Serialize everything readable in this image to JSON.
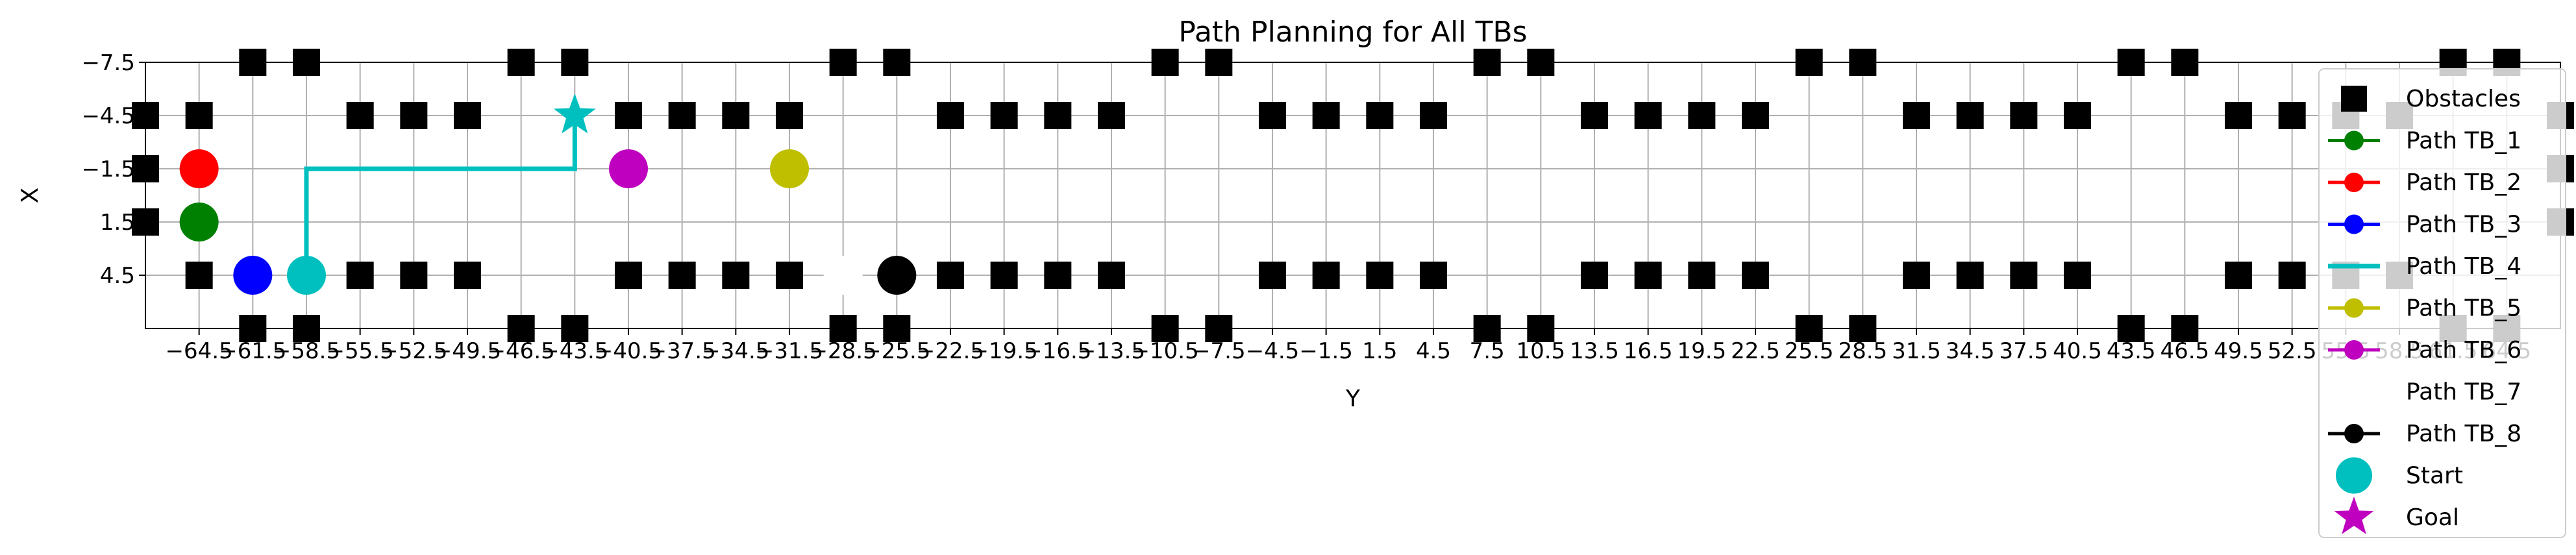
{
  "chart_data": {
    "type": "scatter",
    "title": "Path Planning for All TBs",
    "xlabel": "Y",
    "ylabel": "X",
    "xlim": [
      -67.5,
      67.5
    ],
    "ylim": [
      7.5,
      -7.5
    ],
    "y_inverted": true,
    "grid": true,
    "legend_placement": "right",
    "x_ticks": [
      -64.5,
      -61.5,
      -58.5,
      -55.5,
      -52.5,
      -49.5,
      -46.5,
      -43.5,
      -40.5,
      -37.5,
      -34.5,
      -31.5,
      -28.5,
      -25.5,
      -22.5,
      -19.5,
      -16.5,
      -13.5,
      -10.5,
      -7.5,
      -4.5,
      -1.5,
      1.5,
      4.5,
      7.5,
      10.5,
      13.5,
      16.5,
      19.5,
      22.5,
      25.5,
      28.5,
      31.5,
      34.5,
      37.5,
      40.5,
      43.5,
      46.5,
      49.5,
      52.5,
      55.5,
      58.5,
      61.5,
      64.5
    ],
    "x_tick_labels": [
      "−64.5",
      "−61.5",
      "−58.5",
      "−55.5",
      "−52.5",
      "−49.5",
      "−46.5",
      "−43.5",
      "−40.5",
      "−37.5",
      "−34.5",
      "−31.5",
      "−28.5",
      "−25.5",
      "−22.5",
      "−19.5",
      "−16.5",
      "−13.5",
      "−10.5",
      "−7.5",
      "−4.5",
      "−1.5",
      "1.5",
      "4.5",
      "7.5",
      "10.5",
      "13.5",
      "16.5",
      "19.5",
      "22.5",
      "25.5",
      "28.5",
      "31.5",
      "34.5",
      "37.5",
      "40.5",
      "43.5",
      "46.5",
      "49.5",
      "52.5",
      "55.5",
      "58.5",
      "61.5",
      "64.5"
    ],
    "y_ticks": [
      -7.5,
      -4.5,
      -1.5,
      1.5,
      4.5
    ],
    "y_tick_labels": [
      "−7.5",
      "−4.5",
      "−1.5",
      "1.5",
      "4.5"
    ],
    "obstacles": {
      "color": "#000000",
      "row_minus_7_5_y": [
        -61.5,
        -58.5,
        -46.5,
        -43.5,
        -28.5,
        -25.5,
        -10.5,
        -7.5,
        7.5,
        10.5,
        25.5,
        28.5,
        43.5,
        46.5,
        61.5,
        64.5
      ],
      "row_7_5_y": [
        -61.5,
        -58.5,
        -46.5,
        -43.5,
        -28.5,
        -25.5,
        -10.5,
        -7.5,
        7.5,
        10.5,
        25.5,
        28.5,
        43.5,
        46.5,
        61.5,
        64.5
      ],
      "rows_minus_4_5_and_4_5_y": [
        -64.5,
        -55.5,
        -52.5,
        -49.5,
        -40.5,
        -37.5,
        -34.5,
        -31.5,
        -22.5,
        -19.5,
        -16.5,
        -13.5,
        -4.5,
        -1.5,
        1.5,
        4.5,
        13.5,
        16.5,
        19.5,
        22.5,
        31.5,
        34.5,
        37.5,
        40.5,
        49.5,
        52.5,
        55.5,
        58.5
      ],
      "edge_y": [
        -67.5,
        67.5
      ],
      "edge_x": [
        -4.5,
        -1.5,
        1.5
      ]
    },
    "series": [
      {
        "name": "Path TB_1",
        "color": "#008000",
        "start": {
          "y": -64.5,
          "x": 1.5
        },
        "path": []
      },
      {
        "name": "Path TB_2",
        "color": "#ff0000",
        "start": {
          "y": -64.5,
          "x": -1.5
        },
        "path": []
      },
      {
        "name": "Path TB_3",
        "color": "#0000ff",
        "start": {
          "y": -61.5,
          "x": 4.5
        },
        "path": []
      },
      {
        "name": "Path TB_4",
        "color": "#00bfbf",
        "start": {
          "y": -58.5,
          "x": 4.5
        },
        "path": [
          {
            "y": -58.5,
            "x": 4.5
          },
          {
            "y": -58.5,
            "x": -1.5
          },
          {
            "y": -43.5,
            "x": -1.5
          },
          {
            "y": -43.5,
            "x": -4.5
          }
        ],
        "goal": {
          "y": -43.5,
          "x": -4.5
        }
      },
      {
        "name": "Path TB_5",
        "color": "#bfbf00",
        "start": {
          "y": -31.5,
          "x": -1.5
        },
        "path": []
      },
      {
        "name": "Path TB_6",
        "color": "#bf00bf",
        "start": {
          "y": -40.5,
          "x": -1.5
        },
        "path": []
      },
      {
        "name": "Path TB_7",
        "color": "#ffffff",
        "start": {
          "y": -28.5,
          "x": 4.5
        },
        "path": []
      },
      {
        "name": "Path TB_8",
        "color": "#000000",
        "start": {
          "y": -25.5,
          "x": 4.5
        },
        "path": []
      }
    ],
    "legend": [
      {
        "label": "Obstacles",
        "marker": "square",
        "color": "#000000"
      },
      {
        "label": "Path TB_1",
        "marker": "line-circle",
        "color": "#008000"
      },
      {
        "label": "Path TB_2",
        "marker": "line-circle",
        "color": "#ff0000"
      },
      {
        "label": "Path TB_3",
        "marker": "line-circle",
        "color": "#0000ff"
      },
      {
        "label": "Path TB_4",
        "marker": "line",
        "color": "#00bfbf"
      },
      {
        "label": "Path TB_5",
        "marker": "line-circle",
        "color": "#bfbf00"
      },
      {
        "label": "Path TB_6",
        "marker": "line-circle",
        "color": "#bf00bf"
      },
      {
        "label": "Path TB_7",
        "marker": "none",
        "color": "#ffffff"
      },
      {
        "label": "Path TB_8",
        "marker": "line-circle",
        "color": "#000000"
      },
      {
        "label": "Start",
        "marker": "big-circle",
        "color": "#00bfbf"
      },
      {
        "label": "Goal",
        "marker": "star",
        "color": "#bf00bf"
      }
    ]
  }
}
